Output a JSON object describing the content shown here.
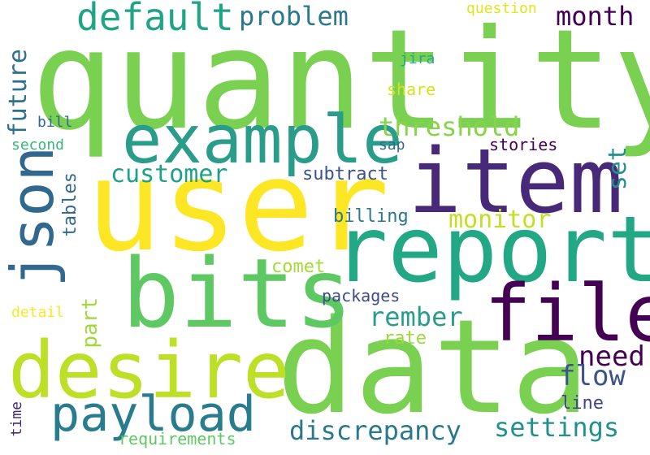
{
  "words": {
    "quantity": {
      "text": "quantity",
      "color": "#7ad151"
    },
    "user": {
      "text": "user",
      "color": "#fde725"
    },
    "data": {
      "text": "data",
      "color": "#7ad151"
    },
    "report": {
      "text": "report",
      "color": "#22a884"
    },
    "item": {
      "text": "item",
      "color": "#482878"
    },
    "bits": {
      "text": "bits",
      "color": "#5ec962"
    },
    "example": {
      "text": "example",
      "color": "#2a9d8a"
    },
    "desire": {
      "text": "desire",
      "color": "#bddf26"
    },
    "file": {
      "text": "file",
      "color": "#440154"
    },
    "json": {
      "text": "json",
      "color": "#31688e"
    },
    "payload": {
      "text": "payload",
      "color": "#287c8e"
    },
    "default": {
      "text": "default",
      "color": "#20a486"
    },
    "problem": {
      "text": "problem",
      "color": "#2a788e"
    },
    "month": {
      "text": "month",
      "color": "#440154"
    },
    "threshold": {
      "text": "threshold",
      "color": "#86d549"
    },
    "customer": {
      "text": "customer",
      "color": "#1fa187"
    },
    "set": {
      "text": "set",
      "color": "#21918c"
    },
    "future": {
      "text": "future",
      "color": "#2c728e"
    },
    "subtract": {
      "text": "subtract",
      "color": "#3b528b"
    },
    "monitor": {
      "text": "monitor",
      "color": "#c2df23"
    },
    "billing": {
      "text": "billing",
      "color": "#2a788e"
    },
    "tables": {
      "text": "tables",
      "color": "#31688e"
    },
    "comet": {
      "text": "comet",
      "color": "#a5db36"
    },
    "part": {
      "text": "part",
      "color": "#9fda3a"
    },
    "rember": {
      "text": "rember",
      "color": "#2a9d8a"
    },
    "packages": {
      "text": "packages",
      "color": "#3e4a89"
    },
    "detail": {
      "text": "detail",
      "color": "#fde725"
    },
    "rate": {
      "text": "rate",
      "color": "#9dd93b"
    },
    "need": {
      "text": "need",
      "color": "#440154"
    },
    "flow": {
      "text": "flow",
      "color": "#3b528b"
    },
    "discrepancy": {
      "text": "discrepancy",
      "color": "#2a788e"
    },
    "settings": {
      "text": "settings",
      "color": "#21918c"
    },
    "line": {
      "text": "line",
      "color": "#414487"
    },
    "time": {
      "text": "time",
      "color": "#482878"
    },
    "requirements": {
      "text": "requirements",
      "color": "#5ec962"
    },
    "question": {
      "text": "question",
      "color": "#e5e419"
    },
    "jira": {
      "text": "jira",
      "color": "#22a884"
    },
    "share": {
      "text": "share",
      "color": "#d8e219"
    },
    "bill": {
      "text": "bill",
      "color": "#31688e"
    },
    "second": {
      "text": "second",
      "color": "#35b779"
    },
    "sap": {
      "text": "sap",
      "color": "#31688e"
    },
    "stories": {
      "text": "stories",
      "color": "#440154"
    }
  }
}
